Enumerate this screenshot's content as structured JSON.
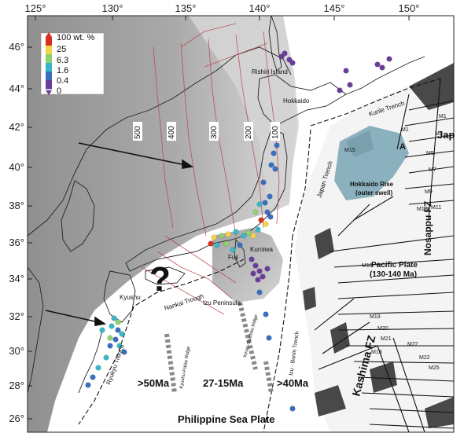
{
  "axes": {
    "lon_ticks": [
      "125°",
      "130°",
      "135°",
      "140°",
      "145°",
      "150°"
    ],
    "lat_ticks": [
      "46°",
      "44°",
      "42°",
      "40°",
      "38°",
      "36°",
      "34°",
      "32°",
      "30°",
      "28°",
      "26°"
    ]
  },
  "legend": {
    "title": "100 wt. %",
    "stops": [
      "25",
      "6.3",
      "1.6",
      "0.4",
      "0"
    ],
    "colors": [
      "#d7301f",
      "#f2d54a",
      "#8fd16e",
      "#38b7c9",
      "#3a6fc0",
      "#6a3d9a"
    ]
  },
  "contours": {
    "labels": [
      "500",
      "400",
      "300",
      "200",
      "100"
    ]
  },
  "labels": {
    "rishiri": "Rishiri Island",
    "hokkaido": "Hokkaido",
    "kurile_trench": "Kurile Trench",
    "japan_trench": "Japan Trench",
    "hokkaido_rise_1": "Hokkaido Rise",
    "hokkaido_rise_2": "(outer swell)",
    "nosappu": "Nosappu FZ",
    "pacific_plate_1": "Pacific Plate",
    "pacific_plate_2": "(130-140 Ma)",
    "kashima": "Kashima FZ",
    "kuroiwa": "Kuroiwa",
    "fuji": "Fuji",
    "izu_peninsula": "Izu Peninsula",
    "nankai": "Nankai Trough",
    "kyushu": "Kyushu",
    "ryukyu": "Ryukyu Trench",
    "izu_bonin": "Izu - Bonin Trench",
    "kyushu_palau": "Kyushu-Palau Ridge",
    "kinan": "Kinan-Shichito Ridge",
    "age_50": ">50Ma",
    "age_27": "27-15Ma",
    "age_40": ">40Ma",
    "phil_plate": "Philippine Sea Plate",
    "anomaly_a": "A",
    "japan_label": "Jap",
    "question": "?"
  },
  "magnetic_labels": [
    "M1",
    "M1",
    "M3",
    "M5",
    "M7",
    "M9",
    "M11",
    "M13",
    "M15",
    "M16",
    "M18",
    "M19",
    "M20",
    "M21",
    "M22",
    "M22",
    "M25"
  ]
}
